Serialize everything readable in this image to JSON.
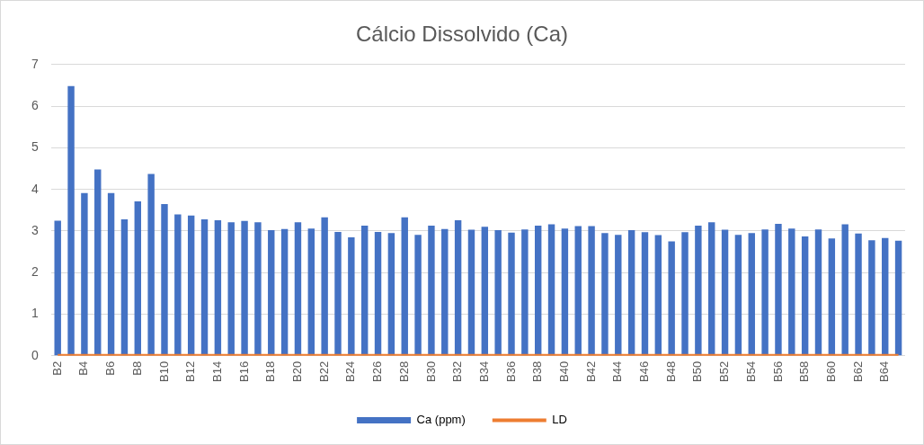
{
  "chart_data": {
    "type": "bar",
    "title": "Cálcio Dissolvido (Ca)",
    "categories": [
      "B2",
      null,
      "B4",
      null,
      "B6",
      null,
      "B8",
      null,
      "B10",
      null,
      "B12",
      null,
      "B14",
      null,
      "B16",
      null,
      "B18",
      null,
      "B20",
      null,
      "B22",
      null,
      "B24",
      null,
      "B26",
      null,
      "B28",
      null,
      "B30",
      null,
      "B32",
      null,
      "B34",
      null,
      "B36",
      null,
      "B38",
      null,
      "B40",
      null,
      "B42",
      null,
      "B44",
      null,
      "B46",
      null,
      "B48",
      null,
      "B50",
      null,
      "B52",
      null,
      "B54",
      null,
      "B56",
      null,
      "B58",
      null,
      "B60",
      null,
      "B62",
      null,
      "B64",
      null
    ],
    "series": [
      {
        "name": "Ca (ppm)",
        "color": "#4472c4",
        "values": [
          3.25,
          6.48,
          3.91,
          4.48,
          3.91,
          3.28,
          3.71,
          4.37,
          3.65,
          3.4,
          3.37,
          3.28,
          3.26,
          3.21,
          3.24,
          3.21,
          3.02,
          3.05,
          3.21,
          3.06,
          3.33,
          2.98,
          2.85,
          3.13,
          2.98,
          2.95,
          3.33,
          2.91,
          3.13,
          3.05,
          3.26,
          3.03,
          3.1,
          3.02,
          2.96,
          3.04,
          3.13,
          3.16,
          3.06,
          3.12,
          3.12,
          2.95,
          2.91,
          3.02,
          2.97,
          2.9,
          2.75,
          2.97,
          3.13,
          3.21,
          3.03,
          2.91,
          2.95,
          3.04,
          3.17,
          3.06,
          2.87,
          3.04,
          2.82,
          3.16,
          2.94,
          2.78,
          2.83,
          2.77
        ]
      },
      {
        "name": "LD",
        "type": "line",
        "color": "#ed7d31",
        "marker": "none",
        "values": [
          0,
          0,
          0,
          0,
          0,
          0,
          0,
          0,
          0,
          0,
          0,
          0,
          0,
          0,
          0,
          0,
          0,
          0,
          0,
          0,
          0,
          0,
          0,
          0,
          0,
          0,
          0,
          0,
          0,
          0,
          0,
          0,
          0,
          0,
          0,
          0,
          0,
          0,
          0,
          0,
          0,
          0,
          0,
          0,
          0,
          0,
          0,
          0,
          0,
          0,
          0,
          0,
          0,
          0,
          0,
          0,
          0,
          0,
          0,
          0,
          0,
          0,
          0,
          0
        ]
      }
    ],
    "ylim": [
      0,
      7
    ],
    "yticks": [
      0,
      1,
      2,
      3,
      4,
      5,
      6,
      7
    ],
    "grid": "y",
    "legend": "bottom"
  }
}
